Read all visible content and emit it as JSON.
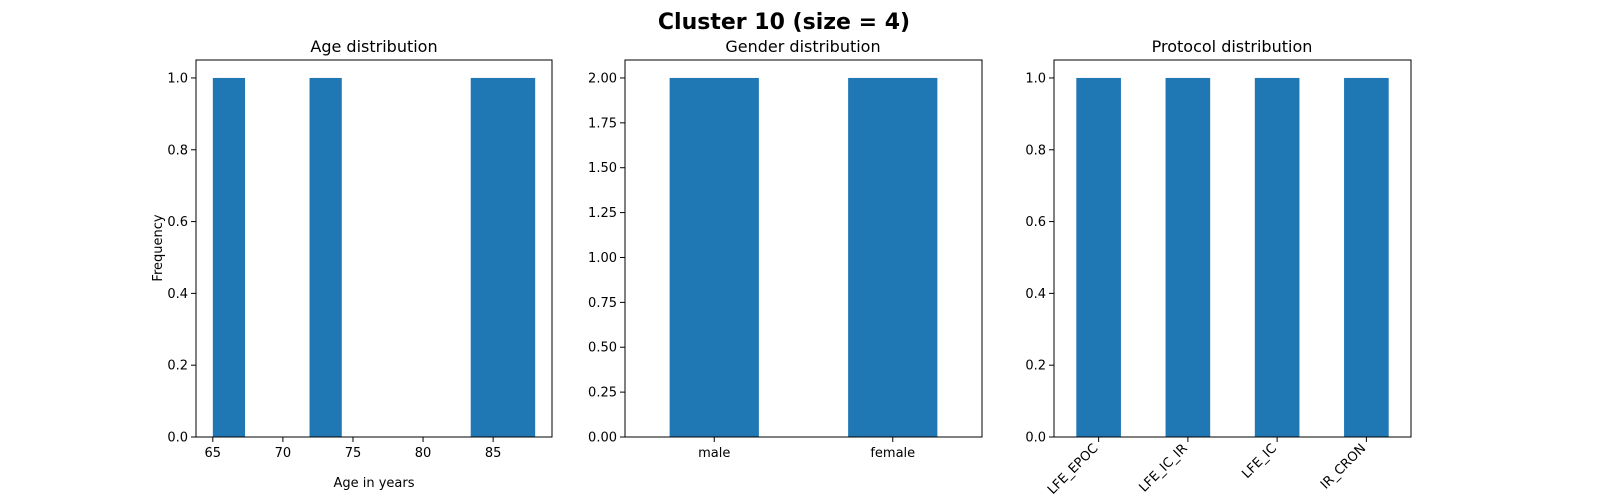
{
  "figure": {
    "suptitle": "Cluster 10 (size = 4)"
  },
  "chart_data": [
    {
      "type": "bar",
      "title": "Age distribution",
      "xlabel": "Age in years",
      "ylabel": "Frequency",
      "xlim": [
        63.8,
        89.2
      ],
      "ylim": [
        0,
        1.05
      ],
      "xticks": [
        65,
        70,
        75,
        80,
        85
      ],
      "yticks": [
        0.0,
        0.2,
        0.4,
        0.6,
        0.8,
        1.0
      ],
      "ytick_labels": [
        "0.0",
        "0.2",
        "0.4",
        "0.6",
        "0.8",
        "1.0"
      ],
      "bins": [
        {
          "start": 65.0,
          "end": 67.3,
          "value": 1
        },
        {
          "start": 71.9,
          "end": 74.2,
          "value": 1
        },
        {
          "start": 83.4,
          "end": 88.0,
          "value": 1
        }
      ],
      "color": "#1f77b4",
      "grid": false
    },
    {
      "type": "bar",
      "title": "Gender distribution",
      "xlabel": "",
      "ylabel": "",
      "categories": [
        "male",
        "female"
      ],
      "values": [
        2,
        2
      ],
      "ylim": [
        0,
        2.1
      ],
      "yticks": [
        0.0,
        0.25,
        0.5,
        0.75,
        1.0,
        1.25,
        1.5,
        1.75,
        2.0
      ],
      "ytick_labels": [
        "0.00",
        "0.25",
        "0.50",
        "0.75",
        "1.00",
        "1.25",
        "1.50",
        "1.75",
        "2.00"
      ],
      "color": "#1f77b4",
      "grid": false
    },
    {
      "type": "bar",
      "title": "Protocol distribution",
      "xlabel": "",
      "ylabel": "",
      "categories": [
        "LFE_EPOC",
        "LFE_IC_IR",
        "LFE_IC",
        "IR_CRON"
      ],
      "values": [
        1,
        1,
        1,
        1
      ],
      "ylim": [
        0,
        1.05
      ],
      "yticks": [
        0.0,
        0.2,
        0.4,
        0.6,
        0.8,
        1.0
      ],
      "ytick_labels": [
        "0.0",
        "0.2",
        "0.4",
        "0.6",
        "0.8",
        "1.0"
      ],
      "xtick_rotation": 45,
      "color": "#1f77b4",
      "grid": false
    }
  ]
}
